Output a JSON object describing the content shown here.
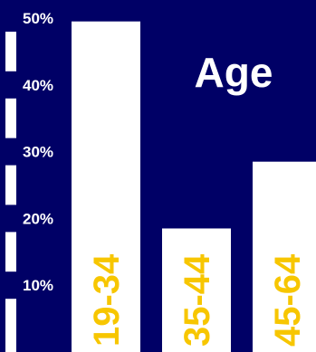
{
  "chart_data": {
    "type": "bar",
    "title": "Age",
    "categories": [
      "19-34",
      "35-44",
      "45-64"
    ],
    "values": [
      49.5,
      18.5,
      28.5
    ],
    "ytick_labels": [
      "10%",
      "20%",
      "30%",
      "40%",
      "50%"
    ],
    "yticks": [
      10,
      20,
      30,
      40,
      50
    ],
    "ylim": [
      0,
      50
    ],
    "unit": "%",
    "grid": false,
    "colors": {
      "background": "#000066",
      "bar": "#ffffff",
      "category_label": "#f7c600",
      "text": "#ffffff",
      "tick_mark": "#ffffff"
    }
  }
}
